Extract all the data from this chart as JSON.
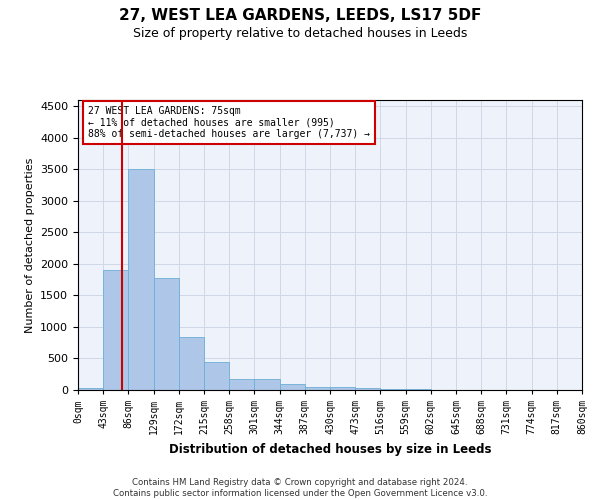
{
  "title": "27, WEST LEA GARDENS, LEEDS, LS17 5DF",
  "subtitle": "Size of property relative to detached houses in Leeds",
  "xlabel": "Distribution of detached houses by size in Leeds",
  "ylabel": "Number of detached properties",
  "annotation_line1": "27 WEST LEA GARDENS: 75sqm",
  "annotation_line2": "← 11% of detached houses are smaller (995)",
  "annotation_line3": "88% of semi-detached houses are larger (7,737) →",
  "footer_line1": "Contains HM Land Registry data © Crown copyright and database right 2024.",
  "footer_line2": "Contains public sector information licensed under the Open Government Licence v3.0.",
  "bar_edges": [
    0,
    43,
    86,
    129,
    172,
    215,
    258,
    301,
    344,
    387,
    430,
    473,
    516,
    559,
    602,
    645,
    688,
    731,
    774,
    817,
    860
  ],
  "bar_heights": [
    30,
    1900,
    3500,
    1770,
    840,
    450,
    175,
    175,
    90,
    55,
    50,
    30,
    20,
    10,
    5,
    3,
    2,
    1,
    1,
    1
  ],
  "bar_color": "#aec6e8",
  "bar_edgecolor": "#6baed6",
  "property_size": 75,
  "ylim": [
    0,
    4600
  ],
  "yticks": [
    0,
    500,
    1000,
    1500,
    2000,
    2500,
    3000,
    3500,
    4000,
    4500
  ],
  "vline_color": "#cc0000",
  "annotation_box_edgecolor": "#cc0000",
  "grid_color": "#d0d8e8",
  "bg_color": "#eef2fa"
}
